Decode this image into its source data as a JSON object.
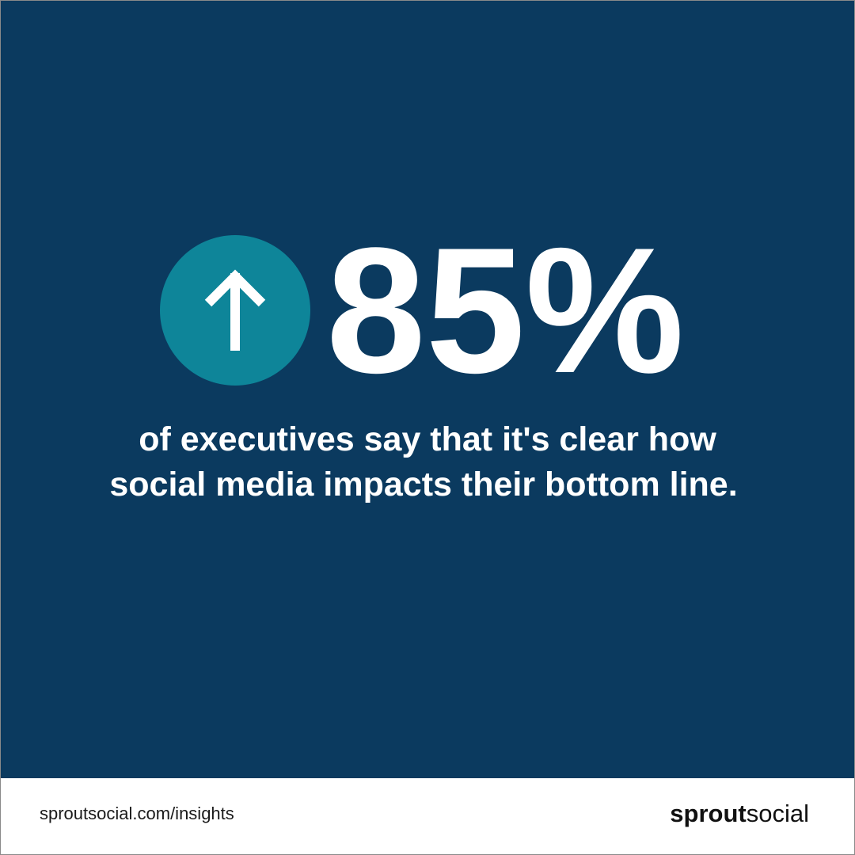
{
  "stat": {
    "value": "85%",
    "caption": [
      "of executives say that it's clear how",
      "social media impacts their bottom line."
    ]
  },
  "footer": {
    "url": "sproutsocial.com/insights",
    "logo": {
      "bold": "sprout",
      "light": "social"
    }
  }
}
